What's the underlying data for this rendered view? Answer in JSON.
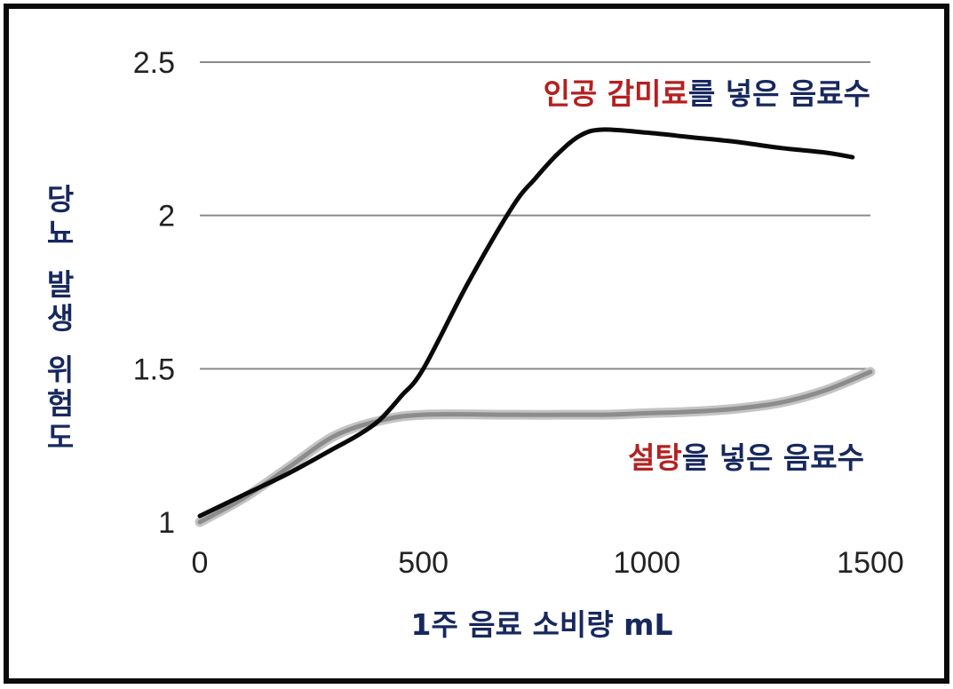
{
  "chart_data": {
    "type": "line",
    "title": "",
    "xlabel": "1주 음료 소비량 mL",
    "ylabel": "당뇨 발생 위험도",
    "xlim": [
      0,
      1500
    ],
    "ylim": [
      1,
      2.5
    ],
    "x_ticks": [
      "0",
      "500",
      "1000",
      "1500"
    ],
    "y_ticks": [
      "1",
      "1.5",
      "2",
      "2.5"
    ],
    "grid": "horizontal",
    "legend": "inline labels",
    "series": [
      {
        "name_highlight": "인공 감미료",
        "name_rest": "를 넣은  음료수",
        "line_color": "#0a0a0a",
        "x": [
          0,
          100,
          200,
          300,
          350,
          400,
          450,
          500,
          600,
          700,
          750,
          800,
          850,
          900,
          1000,
          1100,
          1200,
          1300,
          1400,
          1460
        ],
        "y": [
          1.02,
          1.09,
          1.16,
          1.24,
          1.28,
          1.33,
          1.41,
          1.5,
          1.78,
          2.03,
          2.12,
          2.2,
          2.26,
          2.28,
          2.27,
          2.255,
          2.24,
          2.22,
          2.205,
          2.19
        ]
      },
      {
        "name_highlight": "설탕",
        "name_rest": "을 넣은 음료수",
        "line_color": "#8c8c8c",
        "x": [
          0,
          100,
          200,
          300,
          400,
          500,
          700,
          900,
          1000,
          1100,
          1200,
          1300,
          1400,
          1500
        ],
        "y": [
          1.0,
          1.08,
          1.18,
          1.28,
          1.33,
          1.35,
          1.35,
          1.35,
          1.355,
          1.36,
          1.37,
          1.39,
          1.43,
          1.49
        ]
      }
    ],
    "label_colors": {
      "highlight": "#b52020",
      "rest": "#17285e",
      "axis_label": "#17285e"
    }
  }
}
